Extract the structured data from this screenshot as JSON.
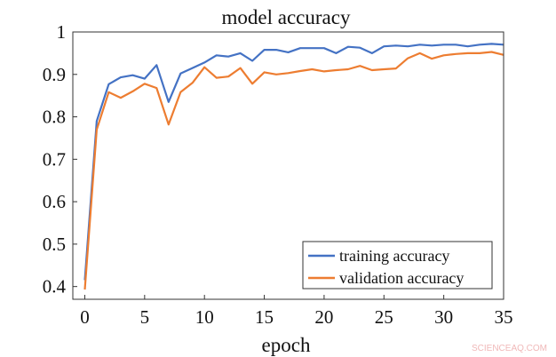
{
  "chart_data": {
    "type": "line",
    "title": "model accuracy",
    "xlabel": "epoch",
    "ylabel": "",
    "xlim": [
      -1,
      35
    ],
    "ylim": [
      0.37,
      1.0
    ],
    "xticks": [
      0,
      5,
      10,
      15,
      20,
      25,
      30,
      35
    ],
    "xtick_labels": [
      "0",
      "5",
      "10",
      "15",
      "20",
      "25",
      "30",
      "35"
    ],
    "yticks": [
      0.4,
      0.5,
      0.6,
      0.7,
      0.8,
      0.9,
      1.0
    ],
    "ytick_labels": [
      "0.4",
      "0.5",
      "0.6",
      "0.7",
      "0.8",
      "0.9",
      "1"
    ],
    "grid": false,
    "legend_position": "bottom-right",
    "x": [
      0,
      1,
      2,
      3,
      4,
      5,
      6,
      7,
      8,
      9,
      10,
      11,
      12,
      13,
      14,
      15,
      16,
      17,
      18,
      19,
      20,
      21,
      22,
      23,
      24,
      25,
      26,
      27,
      28,
      29,
      30,
      31,
      32,
      33,
      34,
      35
    ],
    "series": [
      {
        "name": "training accuracy",
        "color": "#4472C4",
        "values": [
          0.415,
          0.79,
          0.877,
          0.893,
          0.898,
          0.89,
          0.922,
          0.835,
          0.902,
          0.915,
          0.928,
          0.945,
          0.942,
          0.95,
          0.932,
          0.958,
          0.958,
          0.952,
          0.962,
          0.962,
          0.962,
          0.95,
          0.965,
          0.963,
          0.95,
          0.966,
          0.968,
          0.966,
          0.97,
          0.968,
          0.97,
          0.97,
          0.966,
          0.97,
          0.972,
          0.97
        ]
      },
      {
        "name": "validation accuracy",
        "color": "#ED7D31",
        "values": [
          0.393,
          0.77,
          0.858,
          0.845,
          0.86,
          0.878,
          0.868,
          0.782,
          0.858,
          0.88,
          0.917,
          0.892,
          0.895,
          0.915,
          0.878,
          0.905,
          0.9,
          0.903,
          0.908,
          0.912,
          0.907,
          0.91,
          0.912,
          0.92,
          0.91,
          0.912,
          0.914,
          0.938,
          0.95,
          0.937,
          0.945,
          0.948,
          0.95,
          0.95,
          0.953,
          0.946
        ]
      }
    ]
  },
  "watermark": "SCIENCEAQ.COM"
}
